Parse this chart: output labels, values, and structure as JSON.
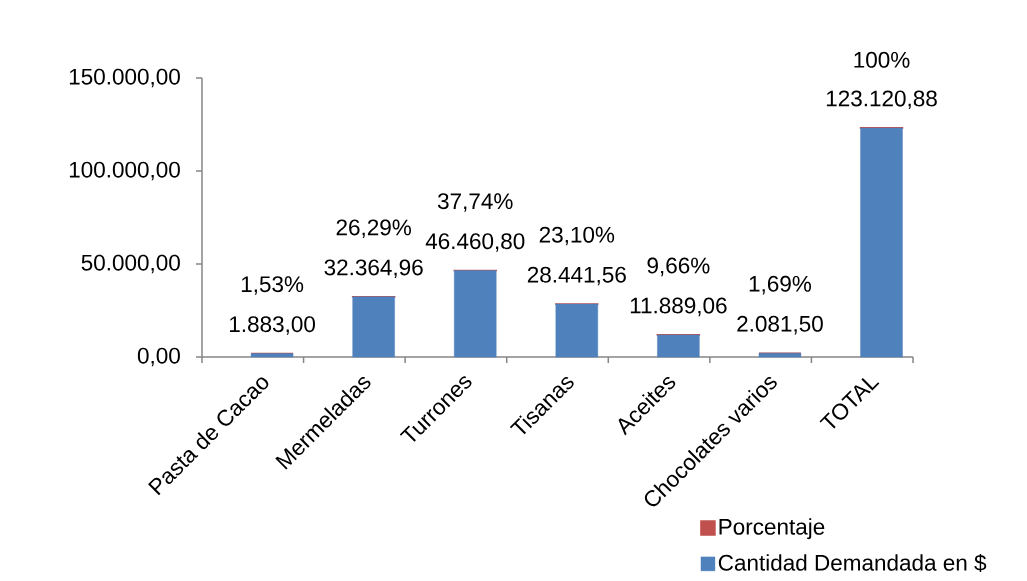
{
  "chart_data": {
    "type": "bar",
    "stacked": true,
    "categories": [
      "Pasta de Cacao",
      "Mermeladas",
      "Turrones",
      "Tisanas",
      "Aceites",
      "Chocolates varios",
      "TOTAL"
    ],
    "series": [
      {
        "name": "Cantidad Demandada en $",
        "color": "#4f81bd",
        "values": [
          1883.0,
          32364.96,
          46460.8,
          28441.56,
          11889.06,
          2081.5,
          123120.88
        ],
        "value_labels": [
          "1.883,00",
          "32.364,96",
          "46.460,80",
          "28.441,56",
          "11.889,06",
          "2.081,50",
          "123.120,88"
        ]
      },
      {
        "name": "Porcentaje",
        "color": "#c0504d",
        "values": [
          1.53,
          26.29,
          37.74,
          23.1,
          9.66,
          1.69,
          100
        ],
        "value_labels": [
          "1,53%",
          "26,29%",
          "37,74%",
          "23,10%",
          "9,66%",
          "1,69%",
          "100%"
        ]
      }
    ],
    "ylim": [
      0,
      150000
    ],
    "yticks": [
      {
        "value": 0,
        "label": "0,00"
      },
      {
        "value": 50000,
        "label": "50.000,00"
      },
      {
        "value": 100000,
        "label": "100.000,00"
      },
      {
        "value": 150000,
        "label": "150.000,00"
      }
    ],
    "legend": "bottom right"
  }
}
